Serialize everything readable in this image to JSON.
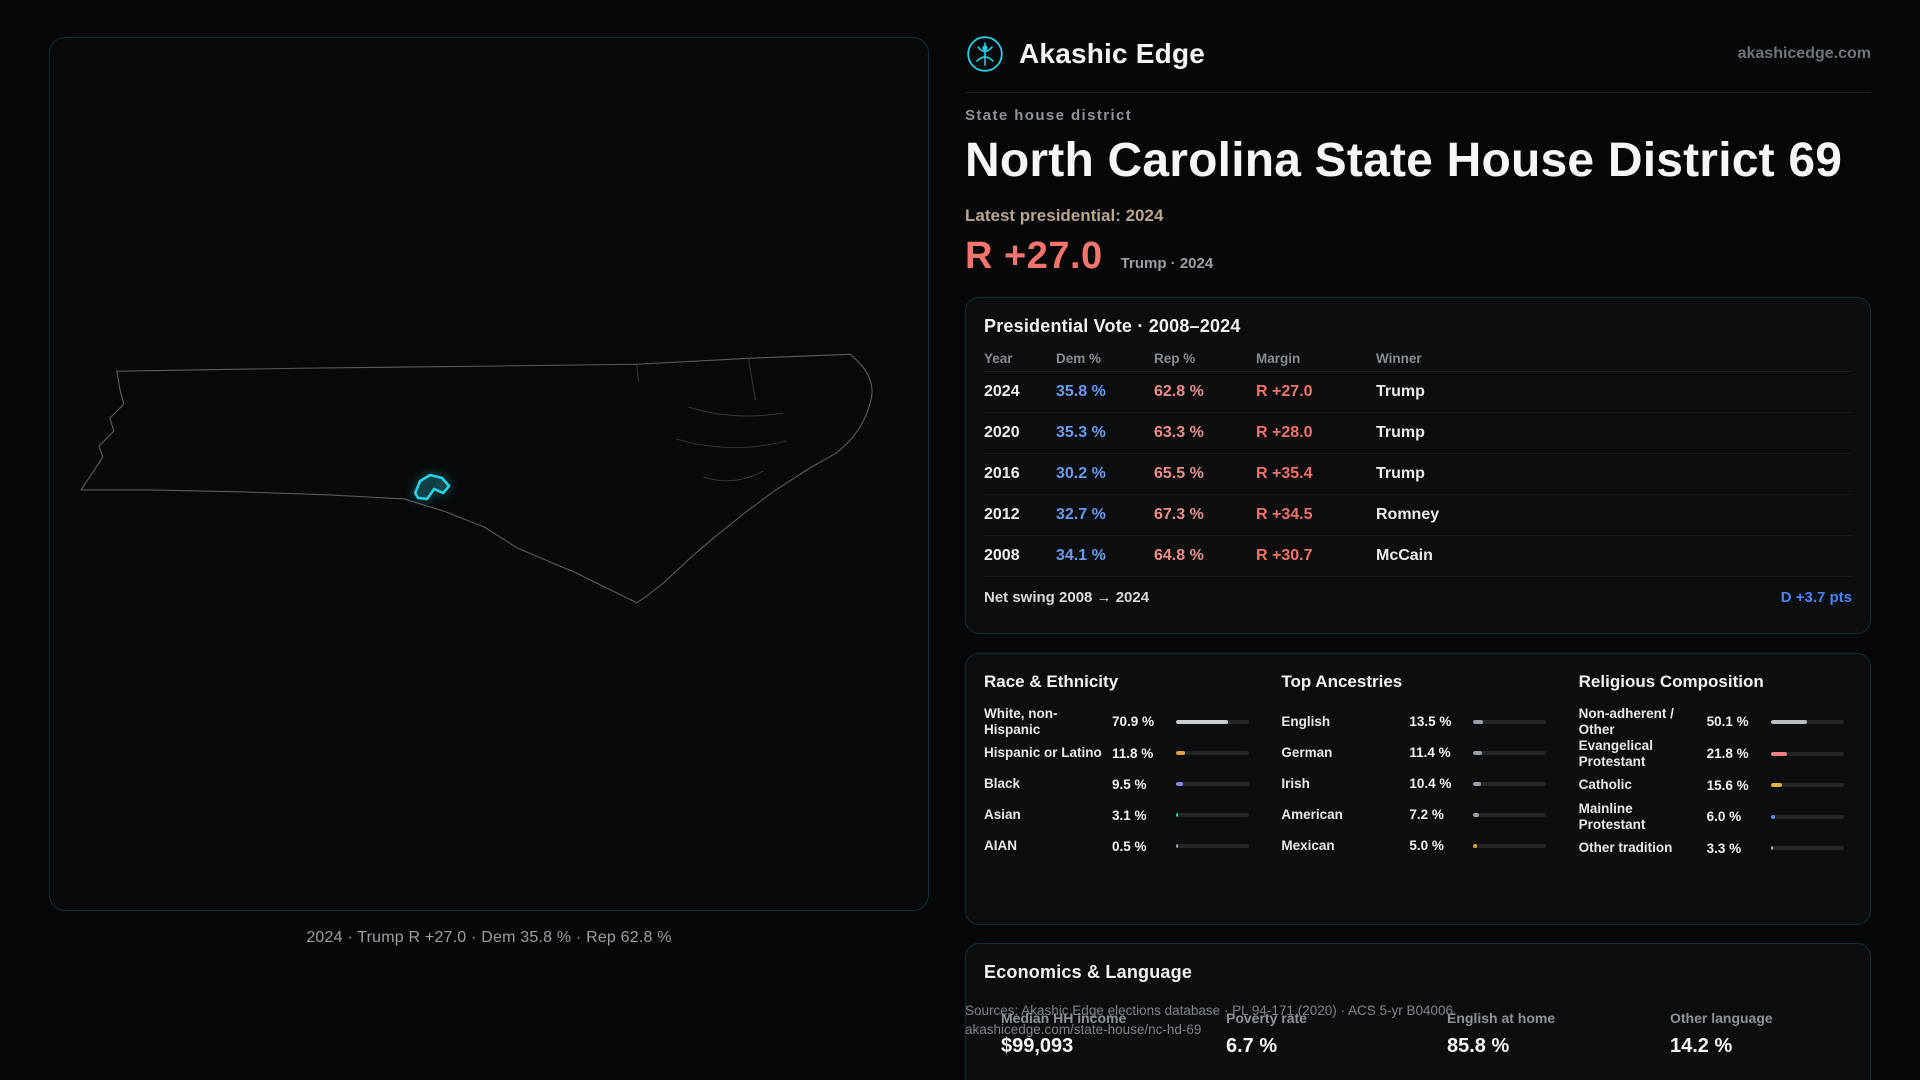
{
  "brand": {
    "name": "Akashic Edge",
    "domain": "akashicedge.com"
  },
  "header": {
    "kicker": "State house district",
    "title": "North Carolina State House District 69",
    "latest_label": "Latest presidential: 2024",
    "headline_margin": "R +27.0",
    "headline_note": "Trump · 2024"
  },
  "map": {
    "caption": "2024 · Trump R +27.0 · Dem 35.8 % · Rep 62.8 %"
  },
  "presidential": {
    "title": "Presidential Vote · 2008–2024",
    "columns": [
      "Year",
      "Dem %",
      "Rep %",
      "Margin",
      "Winner"
    ],
    "rows": [
      [
        "2024",
        "35.8 %",
        "62.8 %",
        "R +27.0",
        "Trump"
      ],
      [
        "2020",
        "35.3 %",
        "63.3 %",
        "R +28.0",
        "Trump"
      ],
      [
        "2016",
        "30.2 %",
        "65.5 %",
        "R +35.4",
        "Trump"
      ],
      [
        "2012",
        "32.7 %",
        "67.3 %",
        "R +34.5",
        "Romney"
      ],
      [
        "2008",
        "34.1 %",
        "64.8 %",
        "R +30.7",
        "McCain"
      ]
    ],
    "net_swing_label": "Net swing 2008 → 2024",
    "net_swing_value": "D +3.7 pts"
  },
  "demographics": {
    "race": {
      "title": "Race & Ethnicity",
      "rows": [
        {
          "label": "White, non-Hispanic",
          "value": "70.9 %",
          "pct": 70.9,
          "color": "#c7cdd3"
        },
        {
          "label": "Hispanic or Latino",
          "value": "11.8 %",
          "pct": 11.8,
          "color": "#e2a43c"
        },
        {
          "label": "Black",
          "value": "9.5 %",
          "pct": 9.5,
          "color": "#8a86f2"
        },
        {
          "label": "Asian",
          "value": "3.1 %",
          "pct": 3.1,
          "color": "#37d3a0"
        },
        {
          "label": "AIAN",
          "value": "0.5 %",
          "pct": 0.5,
          "color": "#a6abb1"
        }
      ]
    },
    "ancestries": {
      "title": "Top Ancestries",
      "rows": [
        {
          "label": "English",
          "value": "13.5 %",
          "pct": 13.5,
          "color": "#97a0aa"
        },
        {
          "label": "German",
          "value": "11.4 %",
          "pct": 11.4,
          "color": "#97a0aa"
        },
        {
          "label": "Irish",
          "value": "10.4 %",
          "pct": 10.4,
          "color": "#97a0aa"
        },
        {
          "label": "American",
          "value": "7.2 %",
          "pct": 7.2,
          "color": "#97a0aa"
        },
        {
          "label": "Mexican",
          "value": "5.0 %",
          "pct": 5.0,
          "color": "#e2a43c"
        }
      ]
    },
    "religion": {
      "title": "Religious Composition",
      "rows": [
        {
          "label": "Non-adherent / Other",
          "value": "50.1 %",
          "pct": 50.1,
          "color": "#b7bdc3"
        },
        {
          "label": "Evangelical Protestant",
          "value": "21.8 %",
          "pct": 21.8,
          "color": "#ec8282"
        },
        {
          "label": "Catholic",
          "value": "15.6 %",
          "pct": 15.6,
          "color": "#e2b43c"
        },
        {
          "label": "Mainline Protestant",
          "value": "6.0 %",
          "pct": 6.0,
          "color": "#5f8df2"
        },
        {
          "label": "Other tradition",
          "value": "3.3 %",
          "pct": 3.3,
          "color": "#a6abb1"
        }
      ]
    }
  },
  "economics": {
    "title": "Economics & Language",
    "stats": [
      {
        "label": "Median HH income",
        "value": "$99,093"
      },
      {
        "label": "Poverty rate",
        "value": "6.7 %"
      },
      {
        "label": "English at home",
        "value": "85.8 %"
      },
      {
        "label": "Other language",
        "value": "14.2 %"
      }
    ]
  },
  "sources": {
    "line1": "Sources: Akashic Edge elections database · PL 94-171 (2020) · ACS 5-yr B04006",
    "line2": "akashicedge.com/state-house/nc-hd-69"
  }
}
